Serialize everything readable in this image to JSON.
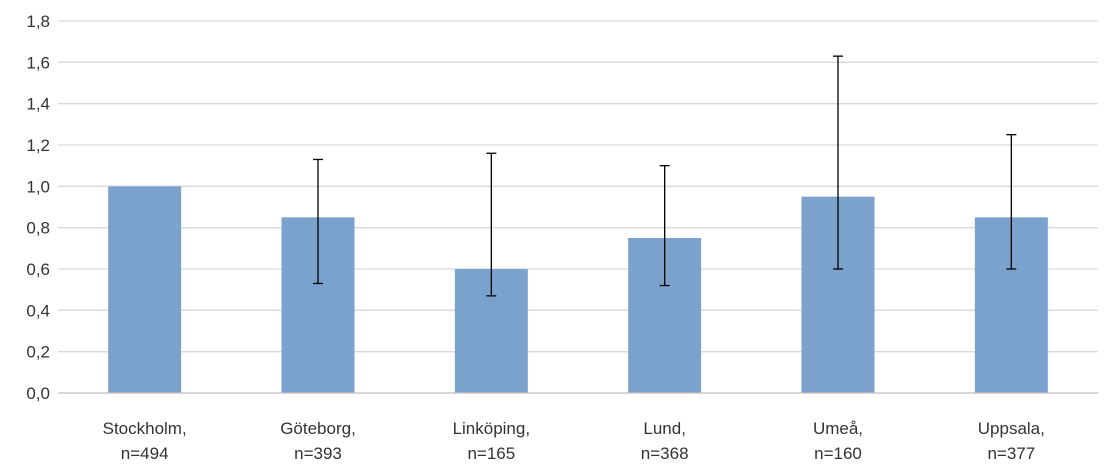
{
  "chart_data": {
    "type": "bar",
    "title": "",
    "xlabel": "",
    "ylabel": "",
    "ylim": [
      0,
      1.8
    ],
    "yticks": [
      "0,0",
      "0,2",
      "0,4",
      "0,6",
      "0,8",
      "1,0",
      "1,2",
      "1,4",
      "1,6",
      "1,8"
    ],
    "grid": true,
    "legend": "none",
    "bar_color": "#7ba2cc",
    "categories": [
      {
        "line1": "Stockholm,",
        "line2": "n=494"
      },
      {
        "line1": "Göteborg,",
        "line2": "n=393"
      },
      {
        "line1": "Linköping,",
        "line2": "n=165"
      },
      {
        "line1": "Lund,",
        "line2": "n=368"
      },
      {
        "line1": "Umeå,",
        "line2": "n=160"
      },
      {
        "line1": "Uppsala,",
        "line2": "n=377"
      }
    ],
    "values": [
      1.0,
      0.85,
      0.6,
      0.75,
      0.95,
      0.85
    ],
    "error_low": [
      null,
      0.53,
      0.47,
      0.52,
      0.6,
      0.6
    ],
    "error_high": [
      null,
      1.13,
      1.16,
      1.1,
      1.63,
      1.25
    ]
  }
}
